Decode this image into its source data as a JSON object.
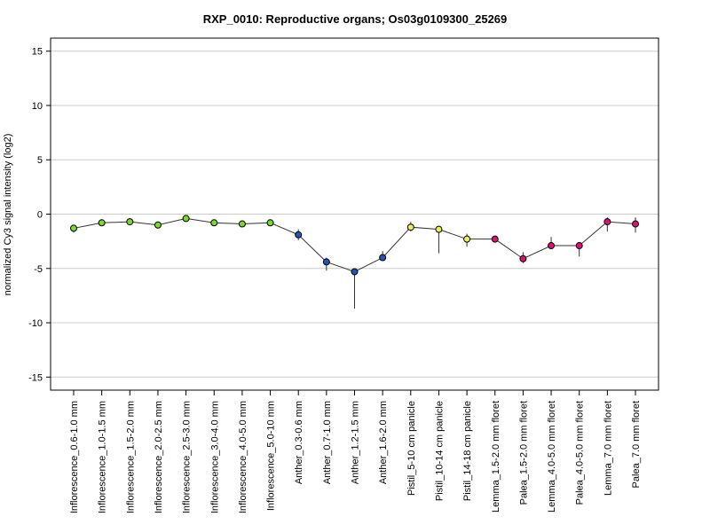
{
  "chart_data": {
    "type": "line",
    "title": "RXP_0010: Reproductive organs; Os03g0109300_25269",
    "xlabel": "",
    "ylabel": "normalized Cy3 signal intensity (log2)",
    "ylim": [
      -16.2,
      16.2
    ],
    "yticks": [
      15,
      10,
      5,
      0,
      -5,
      -10,
      -15
    ],
    "grid": true,
    "categories": [
      "Inflorescence_0.6-1.0 mm",
      "Inflorescence_1.0-1.5 mm",
      "Inflorescence_1.5-2.0 mm",
      "Inflorescence_2.0-2.5 mm",
      "Inflorescence_2.5-3.0 mm",
      "Inflorescence_3.0-4.0 mm",
      "Inflorescence_4.0-5.0 mm",
      "Inflorescence_5.0-10 mm",
      "Anther_0.3-0.6 mm",
      "Anther_0.7-1.0 mm",
      "Anther_1.2-1.5 mm",
      "Anther_1.6-2.0 mm",
      "Pistil_5-10 cm panicle",
      "Pistil_10-14 cm panicle",
      "Pistil_14-18 cm panicle",
      "Lemma_1.5-2.0 mm floret",
      "Palea_1.5-2.0 mm floret",
      "Lemma_4.0-5.0 mm floret",
      "Palea_4.0-5.0 mm floret",
      "Lemma_7.0 mm floret",
      "Palea_7.0 mm floret"
    ],
    "series": [
      {
        "values": [
          -1.3,
          -0.8,
          -0.7,
          -1.0,
          -0.4,
          -0.8,
          -0.9,
          -0.8,
          -1.9,
          -4.4,
          -5.3,
          -4.0,
          -1.2,
          -1.4,
          -2.3,
          -2.3,
          -4.1,
          -2.9,
          -2.9,
          -0.7,
          -0.9
        ],
        "err_low": [
          -1.7,
          -1.0,
          -0.9,
          -1.2,
          -0.6,
          -1.0,
          -1.1,
          -1.0,
          -2.4,
          -5.2,
          -8.7,
          -4.3,
          -1.6,
          -3.6,
          -3.0,
          -2.5,
          -4.5,
          -3.2,
          -3.9,
          -1.6,
          -1.7
        ],
        "err_high": [
          -1.0,
          -0.6,
          -0.5,
          -0.8,
          -0.2,
          -0.6,
          -0.7,
          -0.6,
          -1.4,
          -4.0,
          -5.0,
          -3.4,
          -0.7,
          -1.1,
          -1.8,
          -2.1,
          -3.5,
          -2.1,
          -2.7,
          -0.3,
          -0.3
        ],
        "colors": [
          "#77dd22",
          "#77dd22",
          "#77dd22",
          "#77dd22",
          "#77dd22",
          "#77dd22",
          "#77dd22",
          "#77dd22",
          "#2255bb",
          "#2255bb",
          "#2255bb",
          "#2255bb",
          "#eeee55",
          "#eeee55",
          "#eeee55",
          "#dd1177",
          "#dd1177",
          "#dd1177",
          "#dd1177",
          "#dd1177",
          "#dd1177"
        ]
      }
    ]
  }
}
